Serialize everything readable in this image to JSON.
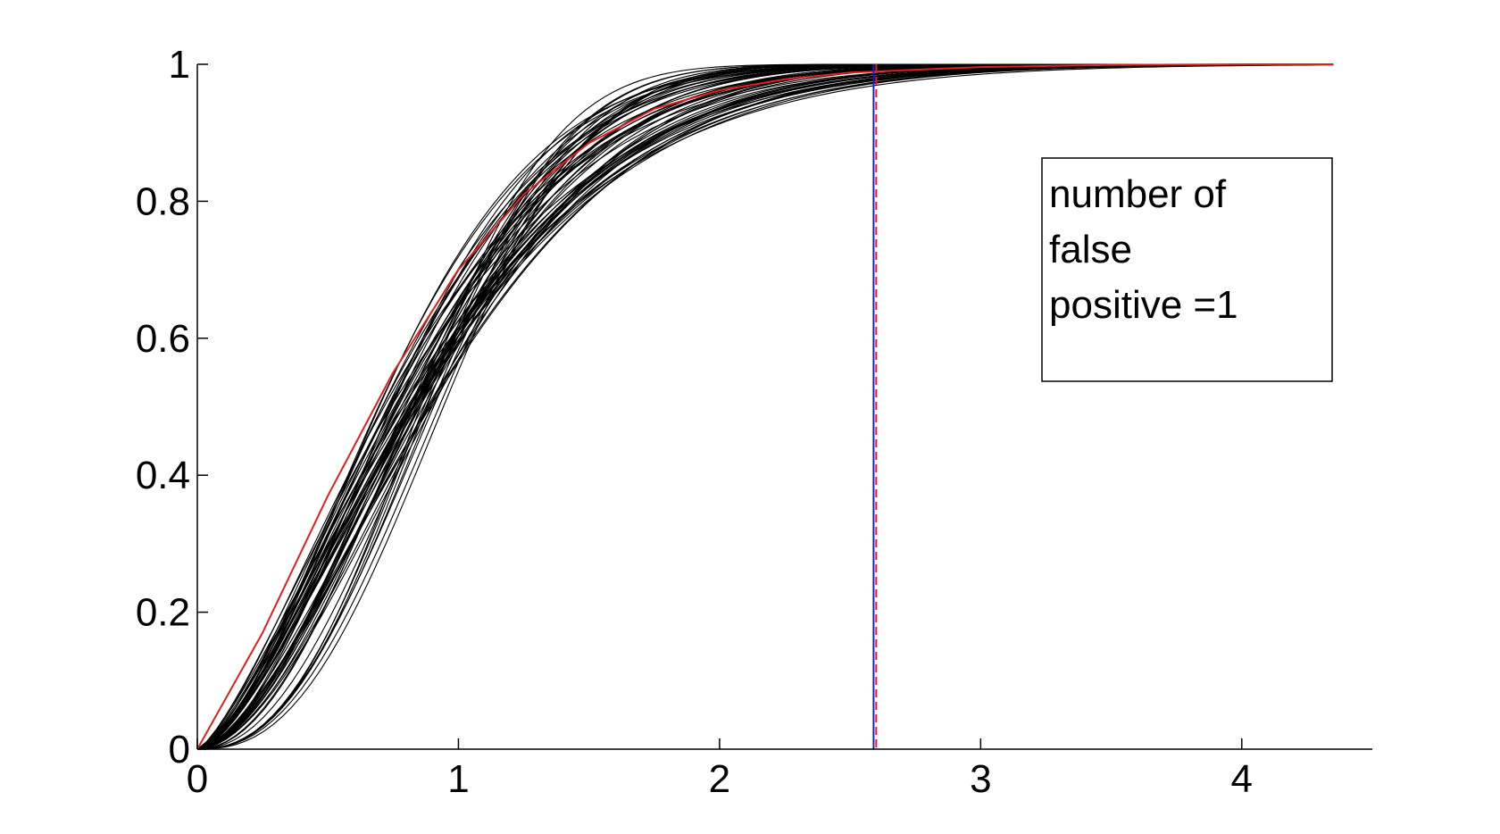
{
  "chart_data": {
    "type": "line",
    "title": "",
    "xlabel": "",
    "ylabel": "",
    "xlim": [
      0,
      4.5
    ],
    "ylim": [
      0,
      1
    ],
    "x_ticks": [
      0,
      1,
      2,
      3,
      4
    ],
    "x_tick_labels": [
      "0",
      "1",
      "2",
      "3",
      "4"
    ],
    "y_ticks": [
      0,
      0.2,
      0.4,
      0.6,
      0.8,
      1
    ],
    "y_tick_labels": [
      "0",
      "0.2",
      "0.4",
      "0.6",
      "0.8",
      "1"
    ],
    "grid": false,
    "x_max_curve": 4.35,
    "bundle": {
      "description": "many black CDF curves (bootstrap/simulated samples)",
      "color": "#000000",
      "count": 60
    },
    "series": [
      {
        "color": "#e0201c",
        "x": [
          0,
          0.25,
          0.5,
          0.75,
          1.0,
          1.25,
          1.5,
          1.75,
          2.0,
          2.25,
          2.5,
          3.0,
          3.5,
          4.0,
          4.35
        ],
        "values": [
          0,
          0.17,
          0.37,
          0.55,
          0.7,
          0.81,
          0.885,
          0.935,
          0.962,
          0.978,
          0.988,
          0.996,
          0.999,
          1.0,
          1.0
        ]
      }
    ],
    "vertical_lines": [
      {
        "x": 2.59,
        "color": "#1a1adb",
        "style": "solid"
      },
      {
        "x": 2.6,
        "color": "#e0201c",
        "style": "dashed"
      }
    ],
    "legend": {
      "placement": "top-right",
      "lines": [
        "number of",
        "false",
        "positive =1"
      ]
    }
  }
}
